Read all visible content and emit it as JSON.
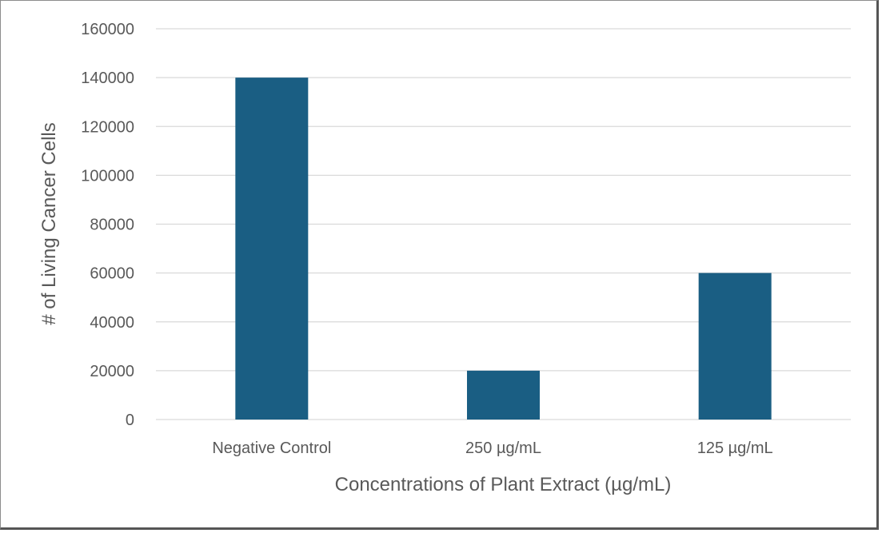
{
  "chart_data": {
    "type": "bar",
    "title": "",
    "xlabel": "Concentrations of Plant Extract (µg/mL)",
    "ylabel": "# of Living Cancer Cells",
    "categories": [
      "Negative Control",
      "250 µg/mL",
      "125 µg/mL"
    ],
    "values": [
      140000,
      20000,
      60000
    ],
    "ylim": [
      0,
      160000
    ],
    "yticks": [
      0,
      20000,
      40000,
      60000,
      80000,
      100000,
      120000,
      140000,
      160000
    ],
    "grid": true,
    "legend": "none",
    "bar_color": "#1a5e83",
    "grid_color": "#d9d9d9",
    "text_color": "#595959"
  }
}
